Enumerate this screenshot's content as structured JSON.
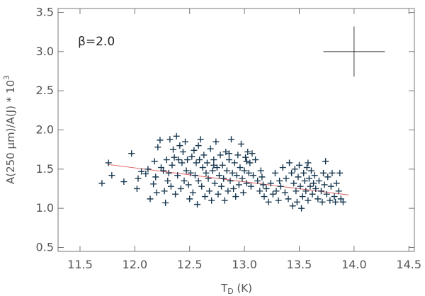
{
  "chart_data": {
    "type": "scatter",
    "xlabel_main": "T",
    "xlabel_sub": "D",
    "xlabel_unit": " (K)",
    "ylabel": "A(250 μm)/A(J) * 10",
    "ylabel_exp": "3",
    "annotation": "β=2.0",
    "xlim": [
      11.3,
      14.55
    ],
    "ylim": [
      0.45,
      3.55
    ],
    "xticks": [
      11.5,
      12.0,
      12.5,
      13.0,
      13.5,
      14.0,
      14.5
    ],
    "xtick_labels": [
      "11.5",
      "12.0",
      "12.5",
      "13.0",
      "13.5",
      "14.0",
      "14.5"
    ],
    "yticks": [
      0.5,
      1.0,
      1.5,
      2.0,
      2.5,
      3.0,
      3.5
    ],
    "ytick_labels": [
      "0.5",
      "1.0",
      "1.5",
      "2.0",
      "2.5",
      "3.0",
      "3.5"
    ],
    "grid": false,
    "colors": {
      "points": "#1a3a52",
      "fit_line": "#e06060",
      "axes": "#777777",
      "error_bar": "#333333"
    },
    "fit_line": {
      "x": [
        11.75,
        13.95
      ],
      "y": [
        1.56,
        1.17
      ]
    },
    "error_bar": {
      "x": 14.0,
      "y": 3.0,
      "xerr": 0.28,
      "yerr": 0.32
    },
    "points": [
      [
        11.7,
        1.32
      ],
      [
        11.76,
        1.58
      ],
      [
        11.79,
        1.42
      ],
      [
        11.9,
        1.34
      ],
      [
        11.97,
        1.7
      ],
      [
        12.02,
        1.25
      ],
      [
        12.03,
        1.38
      ],
      [
        12.06,
        1.47
      ],
      [
        12.1,
        1.44
      ],
      [
        12.12,
        1.5
      ],
      [
        12.14,
        1.12
      ],
      [
        12.17,
        1.31
      ],
      [
        12.19,
        1.4
      ],
      [
        12.2,
        1.2
      ],
      [
        12.21,
        1.78
      ],
      [
        12.23,
        1.87
      ],
      [
        12.24,
        1.52
      ],
      [
        12.27,
        1.22
      ],
      [
        12.28,
        1.07
      ],
      [
        12.29,
        1.62
      ],
      [
        12.3,
        1.35
      ],
      [
        12.31,
        1.45
      ],
      [
        12.32,
        1.88
      ],
      [
        12.33,
        1.28
      ],
      [
        12.34,
        1.55
      ],
      [
        12.35,
        1.75
      ],
      [
        12.36,
        1.65
      ],
      [
        12.37,
        1.18
      ],
      [
        12.38,
        1.92
      ],
      [
        12.39,
        1.42
      ],
      [
        12.41,
        1.8
      ],
      [
        12.42,
        1.25
      ],
      [
        12.43,
        1.58
      ],
      [
        12.44,
        1.72
      ],
      [
        12.45,
        1.35
      ],
      [
        12.46,
        1.85
      ],
      [
        12.47,
        1.48
      ],
      [
        12.48,
        1.62
      ],
      [
        12.49,
        1.3
      ],
      [
        12.5,
        1.12
      ],
      [
        12.51,
        1.45
      ],
      [
        12.52,
        1.66
      ],
      [
        12.53,
        1.2
      ],
      [
        12.54,
        1.74
      ],
      [
        12.55,
        1.42
      ],
      [
        12.56,
        1.58
      ],
      [
        12.57,
        1.05
      ],
      [
        12.58,
        1.35
      ],
      [
        12.59,
        1.62
      ],
      [
        12.6,
        1.88
      ],
      [
        12.61,
        1.28
      ],
      [
        12.62,
        1.52
      ],
      [
        12.63,
        1.68
      ],
      [
        12.64,
        1.15
      ],
      [
        12.65,
        1.45
      ],
      [
        12.66,
        1.58
      ],
      [
        12.67,
        1.38
      ],
      [
        12.68,
        1.22
      ],
      [
        12.69,
        1.76
      ],
      [
        12.7,
        1.1
      ],
      [
        12.71,
        1.48
      ],
      [
        12.72,
        1.62
      ],
      [
        12.73,
        1.32
      ],
      [
        12.74,
        1.85
      ],
      [
        12.75,
        1.52
      ],
      [
        12.76,
        1.18
      ],
      [
        12.77,
        1.42
      ],
      [
        12.78,
        1.68
      ],
      [
        12.79,
        1.28
      ],
      [
        12.8,
        1.55
      ],
      [
        12.81,
        1.38
      ],
      [
        12.82,
        1.1
      ],
      [
        12.83,
        1.72
      ],
      [
        12.84,
        1.48
      ],
      [
        12.85,
        1.22
      ],
      [
        12.86,
        1.62
      ],
      [
        12.87,
        1.35
      ],
      [
        12.88,
        1.88
      ],
      [
        12.89,
        1.45
      ],
      [
        12.9,
        1.25
      ],
      [
        12.91,
        1.58
      ],
      [
        12.92,
        1.15
      ],
      [
        12.93,
        1.42
      ],
      [
        12.94,
        1.68
      ],
      [
        12.95,
        1.3
      ],
      [
        12.96,
        1.52
      ],
      [
        12.97,
        1.82
      ],
      [
        12.98,
        1.38
      ],
      [
        12.99,
        1.2
      ],
      [
        13.0,
        1.48
      ],
      [
        13.01,
        1.65
      ],
      [
        13.02,
        1.32
      ],
      [
        13.03,
        1.72
      ],
      [
        13.04,
        1.45
      ],
      [
        13.05,
        1.58
      ],
      [
        13.06,
        1.28
      ],
      [
        13.07,
        1.7
      ],
      [
        13.08,
        1.42
      ],
      [
        13.1,
        1.62
      ],
      [
        13.12,
        1.35
      ],
      [
        13.14,
        1.22
      ],
      [
        13.15,
        1.48
      ],
      [
        13.17,
        1.3
      ],
      [
        13.18,
        1.15
      ],
      [
        13.2,
        1.25
      ],
      [
        13.22,
        1.08
      ],
      [
        13.24,
        1.32
      ],
      [
        13.26,
        1.18
      ],
      [
        13.28,
        1.45
      ],
      [
        13.29,
        1.22
      ],
      [
        13.31,
        1.1
      ],
      [
        13.33,
        1.28
      ],
      [
        13.35,
        1.52
      ],
      [
        13.37,
        1.2
      ],
      [
        13.38,
        1.38
      ],
      [
        13.4,
        1.12
      ],
      [
        13.41,
        1.58
      ],
      [
        13.43,
        1.45
      ],
      [
        13.44,
        1.03
      ],
      [
        13.45,
        1.32
      ],
      [
        13.46,
        1.5
      ],
      [
        13.47,
        1.22
      ],
      [
        13.48,
        1.08
      ],
      [
        13.49,
        1.4
      ],
      [
        13.5,
        1.55
      ],
      [
        13.51,
        1.28
      ],
      [
        13.52,
        1.0
      ],
      [
        13.53,
        1.15
      ],
      [
        13.54,
        1.45
      ],
      [
        13.55,
        1.35
      ],
      [
        13.56,
        1.22
      ],
      [
        13.57,
        1.52
      ],
      [
        13.58,
        1.1
      ],
      [
        13.59,
        1.38
      ],
      [
        13.6,
        1.28
      ],
      [
        13.61,
        1.48
      ],
      [
        13.62,
        1.18
      ],
      [
        13.63,
        1.32
      ],
      [
        13.64,
        1.42
      ],
      [
        13.65,
        1.25
      ],
      [
        13.67,
        1.12
      ],
      [
        13.68,
        1.35
      ],
      [
        13.7,
        1.22
      ],
      [
        13.71,
        1.08
      ],
      [
        13.72,
        1.45
      ],
      [
        13.73,
        1.3
      ],
      [
        13.75,
        1.18
      ],
      [
        13.76,
        1.4
      ],
      [
        13.78,
        1.1
      ],
      [
        13.79,
        1.28
      ],
      [
        13.8,
        1.45
      ],
      [
        13.82,
        1.15
      ],
      [
        13.83,
        1.08
      ],
      [
        13.84,
        1.32
      ],
      [
        13.86,
        1.22
      ],
      [
        13.87,
        1.45
      ],
      [
        13.88,
        1.12
      ],
      [
        13.9,
        1.08
      ],
      [
        12.18,
        1.6
      ],
      [
        12.26,
        1.48
      ],
      [
        12.4,
        1.62
      ],
      [
        12.58,
        1.8
      ],
      [
        12.72,
        1.55
      ],
      [
        12.86,
        1.7
      ],
      [
        13.02,
        1.6
      ],
      [
        13.16,
        1.4
      ],
      [
        13.32,
        1.35
      ],
      [
        13.58,
        1.58
      ],
      [
        13.74,
        1.6
      ]
    ]
  }
}
